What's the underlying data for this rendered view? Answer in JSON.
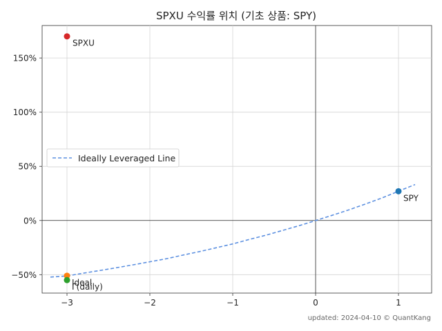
{
  "chart_data": {
    "type": "scatter",
    "title": "SPXU 수익률 위치 (기초 상품: SPY)",
    "xlabel": "",
    "ylabel": "",
    "xlim": [
      -3.3,
      1.4
    ],
    "ylim": [
      -0.67,
      1.8
    ],
    "x_ticks": [
      -3,
      -2,
      -1,
      0,
      1
    ],
    "x_tick_labels": [
      "−3",
      "−2",
      "−1",
      "0",
      "1"
    ],
    "y_ticks": [
      -0.5,
      0,
      0.5,
      1.0,
      1.5
    ],
    "y_tick_labels": [
      "−50%",
      "0%",
      "50%",
      "100%",
      "150%"
    ],
    "grid": true,
    "points": [
      {
        "label": "SPXU",
        "x": -3,
        "y": 1.7,
        "color": "#d62728"
      },
      {
        "label": "SPY",
        "x": 1,
        "y": 0.27,
        "color": "#1f77b4"
      },
      {
        "label": "Ideal",
        "x": -3,
        "y": -0.51,
        "color": "#ff7f0e"
      },
      {
        "label": "Γ(daily)",
        "x": -3,
        "y": -0.55,
        "color": "#2ca02c"
      }
    ],
    "series": [
      {
        "name": "Ideally Leveraged Line",
        "style": "dashed",
        "color": "#5b8fe0",
        "x": [
          -3.2,
          -3.0,
          -2.8,
          -2.6,
          -2.4,
          -2.2,
          -2.0,
          -1.8,
          -1.6,
          -1.4,
          -1.2,
          -1.0,
          -0.8,
          -0.6,
          -0.4,
          -0.2,
          0.0,
          0.2,
          0.4,
          0.6,
          0.8,
          1.0,
          1.2
        ],
        "y": [
          -0.522,
          -0.512,
          -0.486,
          -0.461,
          -0.436,
          -0.409,
          -0.381,
          -0.353,
          -0.319,
          -0.287,
          -0.252,
          -0.216,
          -0.175,
          -0.136,
          -0.092,
          -0.048,
          0.0,
          0.048,
          0.098,
          0.152,
          0.208,
          0.27,
          0.332
        ]
      }
    ],
    "legend": {
      "position": "center-left",
      "entries": [
        "Ideally Leveraged Line"
      ]
    },
    "footer": "updated: 2024-04-10 © QuantKang"
  }
}
